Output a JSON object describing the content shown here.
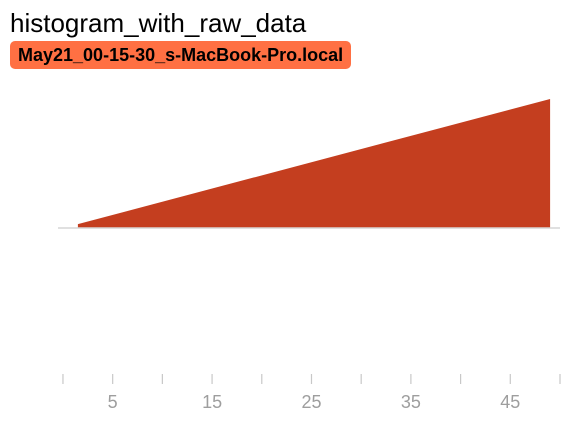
{
  "card": {
    "title": "histogram_with_raw_data",
    "run_name": "May21_00-15-30_s-MacBook-Pro.local",
    "run_color": "#ff7043"
  },
  "chart_data": {
    "type": "area",
    "title": "histogram_with_raw_data",
    "series": [
      {
        "name": "May21_00-15-30_s-MacBook-Pro.local",
        "color": "#c43e1f",
        "x": [
          1.5,
          49
        ],
        "y": [
          0.03,
          1
        ]
      }
    ],
    "xlim": [
      -0.5,
      50
    ],
    "ylim": [
      -1,
      1
    ],
    "xticks": [
      5,
      15,
      25,
      35,
      45
    ],
    "xtick_labels": [
      "5",
      "15",
      "25",
      "35",
      "45"
    ],
    "minor_xticks": [
      0,
      10,
      20,
      30,
      40,
      50
    ],
    "grid": false,
    "legend": "none"
  }
}
